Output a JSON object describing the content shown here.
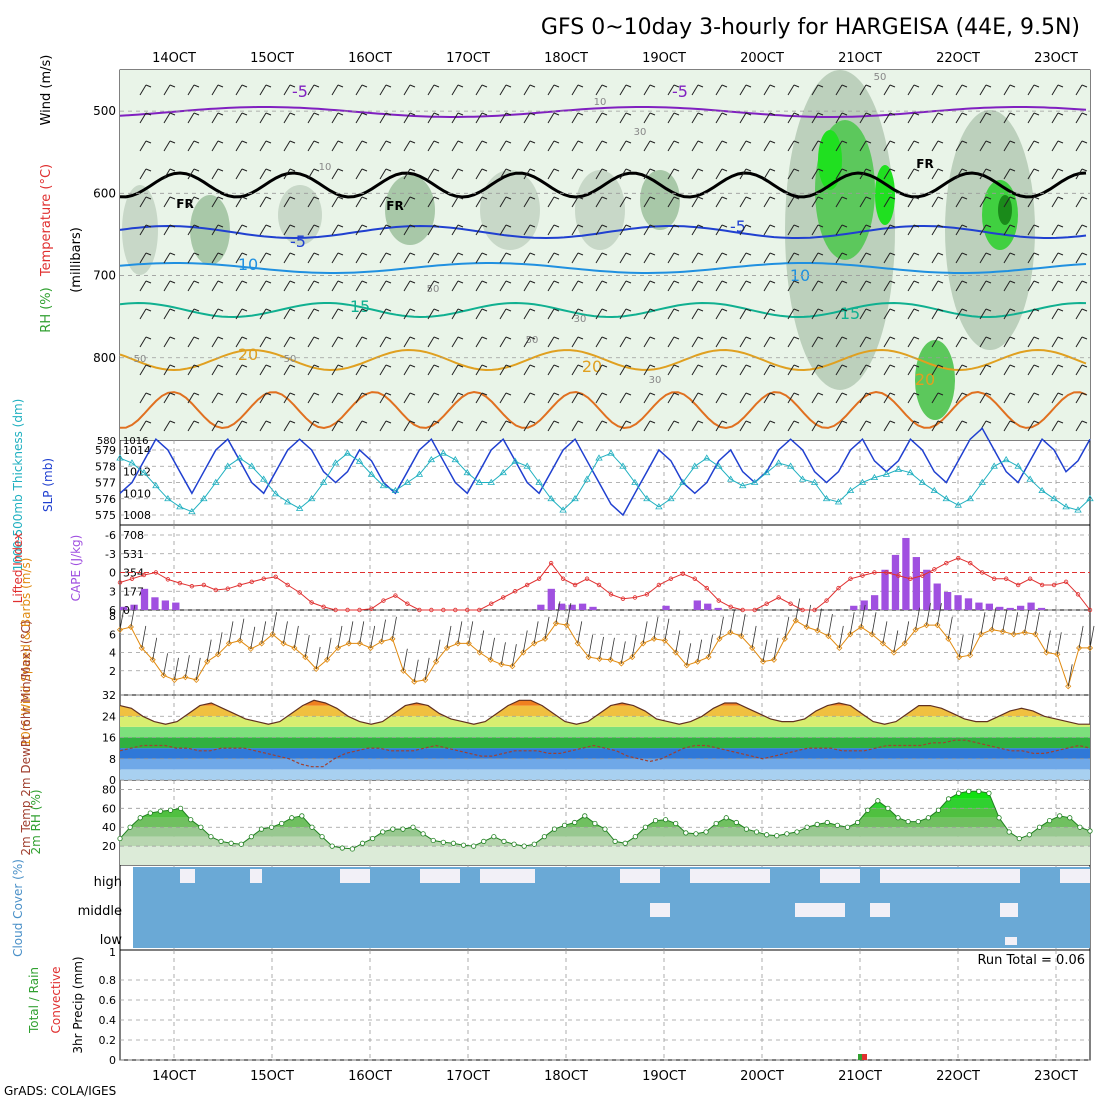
{
  "title": "GFS 0~10day 3-hourly for HARGEISA (44E, 9.5N)",
  "credit": "GrADS: COLA/IGES",
  "colors": {
    "grid": "#9a9a9a",
    "red": "#e03030",
    "green": "#30a030",
    "blue": "#2040d0",
    "cyan": "#20b0c0",
    "orange": "#e08a10",
    "purple": "#a050e0",
    "cloud": "#6aa9d6",
    "cloudClear": "#f2f0f7"
  },
  "chart_data": [
    {
      "type": "heatmap",
      "name": "upper-air",
      "ylabel_parts": [
        "RH (%)",
        "Temperature (°C)",
        "Wind (m/s)",
        "(millibars)"
      ],
      "y_ticks": [
        "500",
        "600",
        "700",
        "800"
      ],
      "x_ticks_top": [
        "14OCT",
        "15OCT",
        "16OCT",
        "17OCT",
        "18OCT",
        "19OCT",
        "20OCT",
        "21OCT",
        "22OCT",
        "23OCT"
      ],
      "y_range": [
        450,
        900
      ],
      "temperature_contours": [
        {
          "level": "-5",
          "color": "#8020c0",
          "labels": [
            "-5",
            "-5"
          ],
          "values": [
            -5,
            -5
          ]
        },
        {
          "level": "FR",
          "color": "#000000",
          "labels": [
            "FR",
            "FR",
            "FR"
          ]
        },
        {
          "level": "-5",
          "color": "#2040d0",
          "labels": [
            "-5",
            "-5"
          ]
        },
        {
          "level": "10",
          "color": "#2090e0",
          "labels": [
            "10",
            "10"
          ]
        },
        {
          "level": "15",
          "color": "#10b090",
          "labels": [
            "15",
            "15"
          ]
        },
        {
          "level": "20",
          "color": "#e0a020",
          "labels": [
            "20",
            "20",
            "20"
          ]
        }
      ],
      "rh_labels": [
        "10",
        "10",
        "30",
        "50",
        "50",
        "30",
        "50",
        "30",
        "50",
        "50"
      ]
    },
    {
      "type": "line",
      "name": "slp-thickness",
      "ylabel_left": "1000-500mb Thickness (dm)",
      "ylabel_right": "SLP (mb)",
      "left_ticks": [
        "579",
        "578",
        "577",
        "576",
        "575"
      ],
      "right_ticks": [
        "1014",
        "1012",
        "1010",
        "1008"
      ],
      "top_labels": [
        "580",
        "1016"
      ],
      "slp": [
        1010,
        1011,
        1013,
        1015,
        1014,
        1012,
        1010,
        1012,
        1014,
        1015,
        1013,
        1011,
        1010,
        1012,
        1014,
        1015,
        1014,
        1012,
        1011,
        1012,
        1014,
        1013,
        1011,
        1010,
        1012,
        1014,
        1015,
        1013,
        1011,
        1010,
        1012,
        1014,
        1015,
        1013,
        1011,
        1010,
        1012,
        1014,
        1015,
        1013,
        1011,
        1009,
        1008,
        1010,
        1012,
        1014,
        1013,
        1011,
        1010,
        1011,
        1013,
        1014,
        1012,
        1011,
        1012,
        1014,
        1015,
        1014,
        1012,
        1011,
        1012,
        1014,
        1015,
        1013,
        1012,
        1013,
        1015,
        1014,
        1012,
        1011,
        1013,
        1015,
        1016,
        1014,
        1012,
        1011,
        1013,
        1015,
        1014,
        1012,
        1013,
        1015
      ],
      "thickness": [
        578.5,
        578.2,
        577.6,
        576.8,
        576.0,
        575.5,
        575.2,
        576.0,
        577.0,
        578.0,
        578.5,
        578.0,
        577.2,
        576.3,
        575.8,
        575.4,
        576.0,
        577.0,
        578.2,
        578.8,
        578.3,
        577.5,
        576.8,
        576.5,
        577.0,
        577.5,
        578.4,
        578.8,
        578.4,
        577.6,
        577.0,
        577.0,
        577.6,
        578.3,
        578.0,
        577.0,
        576.0,
        575.3,
        576.0,
        577.2,
        578.5,
        578.8,
        578.0,
        577.0,
        576.0,
        575.5,
        576.0,
        577.0,
        578.0,
        578.5,
        578.0,
        577.2,
        576.8,
        577.0,
        577.6,
        578.2,
        578.0,
        577.2,
        577.0,
        576.0,
        575.8,
        576.5,
        577.0,
        577.3,
        577.5,
        577.8,
        577.6,
        577.0,
        576.5,
        576.0,
        575.6,
        576.0,
        577.0,
        578.0,
        578.4,
        578.0,
        577.2,
        576.5,
        576.0,
        575.5,
        575.3,
        576.0
      ]
    },
    {
      "type": "bar",
      "name": "cape-li",
      "ylabel_left": "Lifted Index",
      "ylabel_right": "CAPE (J/kg)",
      "left_ticks": [
        "-6",
        "-3",
        "0",
        "3",
        "6"
      ],
      "right_ticks": [
        "708",
        "531",
        "354",
        "177",
        "0"
      ],
      "lifted_index": [
        1.6,
        1.0,
        0.4,
        0.0,
        1.1,
        1.7,
        2.2,
        2.0,
        2.8,
        2.6,
        2.0,
        1.5,
        1.0,
        0.7,
        2.0,
        3.2,
        4.8,
        5.5,
        6.0,
        6.0,
        6.0,
        5.8,
        4.5,
        3.7,
        5.0,
        6.0,
        6.0,
        6.0,
        6.0,
        6.0,
        6.0,
        5.0,
        4.0,
        3.0,
        2.0,
        1.0,
        -1.5,
        1.0,
        2.0,
        1.0,
        2.0,
        3.5,
        4.2,
        4.0,
        3.5,
        2.0,
        1.0,
        0.2,
        1.0,
        2.5,
        4.5,
        5.5,
        6.0,
        6.0,
        5.0,
        4.0,
        5.0,
        6.0,
        6.0,
        4.5,
        2.5,
        1.0,
        0.5,
        0.0,
        0.0,
        0.5,
        1.0,
        0.5,
        -0.5,
        -1.5,
        -2.3,
        -1.5,
        0.0,
        1.0,
        1.0,
        2.0,
        1.0,
        2.0,
        2.0,
        1.5,
        3.5,
        6.0
      ],
      "cape": [
        30,
        50,
        200,
        120,
        90,
        70,
        0,
        0,
        0,
        0,
        0,
        0,
        0,
        0,
        0,
        0,
        0,
        0,
        0,
        0,
        0,
        0,
        0,
        0,
        0,
        0,
        0,
        0,
        0,
        0,
        0,
        0,
        0,
        0,
        0,
        0,
        0,
        0,
        0,
        0,
        50,
        200,
        60,
        50,
        60,
        30,
        0,
        0,
        0,
        0,
        0,
        0,
        40,
        0,
        0,
        90,
        60,
        20,
        0,
        0,
        0,
        0,
        0,
        0,
        0,
        0,
        0,
        0,
        0,
        0,
        40,
        90,
        140,
        380,
        520,
        680,
        500,
        380,
        250,
        170,
        140,
        110,
        70,
        60,
        30,
        20,
        40,
        70,
        20,
        0,
        0,
        0,
        0
      ]
    },
    {
      "type": "line",
      "name": "wind10m",
      "ylabel": "10m Wind Speed & Barbs (m/s)",
      "y_ticks": [
        "8",
        "6",
        "4",
        "2"
      ],
      "values": [
        6.5,
        6.8,
        4.5,
        3.2,
        1.5,
        1.0,
        1.3,
        1.0,
        3.0,
        3.8,
        5.0,
        5.3,
        4.4,
        5.0,
        6.0,
        5.0,
        4.5,
        3.5,
        2.2,
        3.2,
        4.5,
        5.0,
        5.0,
        4.5,
        5.2,
        5.5,
        2.0,
        0.8,
        1.0,
        3.0,
        4.5,
        5.0,
        5.0,
        4.0,
        3.2,
        2.7,
        2.5,
        4.0,
        5.0,
        5.5,
        7.2,
        7.0,
        5.0,
        3.5,
        3.3,
        3.2,
        2.8,
        3.5,
        5.0,
        5.5,
        5.3,
        4.0,
        2.6,
        3.0,
        3.5,
        5.5,
        6.2,
        5.8,
        4.5,
        3.0,
        3.2,
        5.5,
        7.5,
        6.8,
        6.4,
        5.8,
        4.5,
        6.0,
        6.8,
        6.0,
        5.0,
        4.0,
        5.0,
        6.5,
        7.0,
        7.0,
        5.5,
        3.5,
        3.7,
        6.0,
        6.5,
        6.3,
        6.0,
        6.2,
        6.0,
        4.0,
        3.8,
        0.3,
        4.5,
        4.5
      ]
    },
    {
      "type": "area",
      "name": "temp2m",
      "ylabel": "2m Temp 2m DewPt (6hr Min/Max) (°C)",
      "y_ticks": [
        "32",
        "24",
        "16",
        "8",
        "0"
      ],
      "temp": [
        28,
        27,
        24,
        22,
        21,
        22,
        25,
        28,
        29,
        27,
        25,
        23,
        22,
        21,
        22,
        25,
        28,
        30,
        29,
        27,
        24,
        22,
        21,
        22,
        25,
        28,
        29,
        28,
        25,
        23,
        22,
        21,
        22,
        25,
        28,
        30,
        30,
        28,
        25,
        22,
        21,
        22,
        25,
        28,
        29,
        28,
        26,
        23,
        22,
        21,
        22,
        24,
        27,
        29,
        29,
        27,
        25,
        23,
        22,
        22,
        23,
        26,
        28,
        29,
        28,
        25,
        22,
        21,
        22,
        25,
        28,
        28,
        27,
        25,
        23,
        22,
        22,
        24,
        26,
        27,
        26,
        24,
        23,
        22,
        21,
        21
      ],
      "dewpoint": [
        11,
        12,
        13,
        13,
        13,
        12,
        12,
        11,
        11,
        12,
        12,
        12,
        11,
        10,
        9,
        8,
        6,
        5,
        5,
        8,
        10,
        11,
        12,
        12,
        11,
        11,
        11,
        12,
        13,
        12,
        11,
        10,
        9,
        9,
        10,
        11,
        11,
        11,
        10,
        10,
        11,
        12,
        13,
        12,
        11,
        9,
        8,
        7,
        8,
        10,
        12,
        13,
        13,
        12,
        11,
        10,
        9,
        8,
        9,
        10,
        11,
        12,
        12,
        12,
        11,
        11,
        11,
        12,
        13,
        13,
        13,
        13,
        14,
        14,
        15,
        15,
        14,
        13,
        12,
        11,
        11,
        10,
        10,
        11,
        12,
        13,
        12
      ]
    },
    {
      "type": "area",
      "name": "rh2m",
      "ylabel": "2m RH (%)",
      "y_ticks": [
        "80",
        "60",
        "40",
        "20"
      ],
      "values": [
        28,
        40,
        50,
        55,
        57,
        58,
        60,
        48,
        40,
        30,
        25,
        23,
        22,
        30,
        38,
        40,
        44,
        50,
        52,
        40,
        30,
        20,
        18,
        17,
        23,
        28,
        35,
        38,
        38,
        40,
        33,
        26,
        24,
        23,
        21,
        20,
        25,
        30,
        25,
        22,
        20,
        22,
        30,
        38,
        42,
        45,
        52,
        44,
        38,
        25,
        23,
        30,
        40,
        47,
        48,
        44,
        34,
        33,
        35,
        44,
        50,
        45,
        38,
        35,
        32,
        31,
        33,
        35,
        40,
        43,
        45,
        42,
        40,
        45,
        58,
        68,
        60,
        50,
        46,
        46,
        50,
        58,
        70,
        76,
        78,
        78,
        76,
        50,
        35,
        28,
        32,
        40,
        47,
        52,
        50,
        40,
        36
      ]
    },
    {
      "type": "heatmap",
      "name": "cloud-cover",
      "ylabel": "Cloud Cover (%)",
      "row_labels": [
        "high",
        "middle",
        "low"
      ]
    },
    {
      "type": "bar",
      "name": "precip",
      "ylabel_parts": [
        "Total / Rain",
        "Convective",
        "3hr Precip (mm)"
      ],
      "y_ticks": [
        "0.8",
        "0.6",
        "0.4",
        "0.2",
        "0"
      ],
      "y_ticks_extra": [
        "1"
      ],
      "run_total_label": "Run Total = 0.06",
      "bar": {
        "day_index": 24.2,
        "value": 0.06
      },
      "x_ticks_bottom": [
        "14OCT",
        "15OCT",
        "16OCT",
        "17OCT",
        "18OCT",
        "19OCT",
        "20OCT",
        "21OCT",
        "22OCT",
        "23OCT"
      ]
    }
  ]
}
